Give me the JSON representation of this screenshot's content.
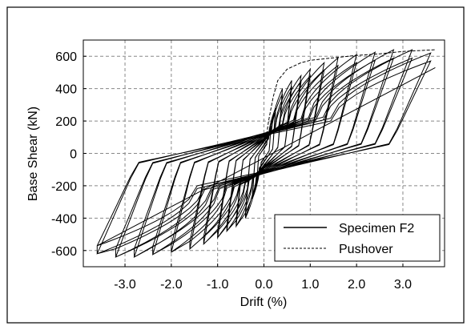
{
  "chart_data": {
    "type": "line",
    "title": "",
    "xlabel": "Drift (%)",
    "ylabel": "Base Shear (kN)",
    "xlim": [
      -3.9,
      3.9
    ],
    "ylim": [
      -700,
      700
    ],
    "grid": true,
    "legend_position": "bottom-right",
    "x_ticks": [
      -3,
      -2,
      -1,
      0,
      1,
      2,
      3
    ],
    "x_tick_labels": [
      "-3.0",
      "-2.0",
      "-1.0",
      "0.0",
      "1.0",
      "2.0",
      "3.0"
    ],
    "y_ticks": [
      600,
      400,
      200,
      0,
      -200,
      -400,
      -600
    ],
    "y_tick_labels": [
      "600",
      "400",
      "200",
      "0",
      "-200",
      "-400",
      "-600"
    ],
    "series": [
      {
        "name": "Specimen F2",
        "style": "solid",
        "cycles": [
          {
            "amp": 0.15,
            "peak": 170
          },
          {
            "amp": 0.25,
            "peak": 280
          },
          {
            "amp": 0.4,
            "peak": 400
          },
          {
            "amp": 0.6,
            "peak": 450
          },
          {
            "amp": 0.8,
            "peak": 480
          },
          {
            "amp": 1.0,
            "peak": 520
          },
          {
            "amp": 1.3,
            "peak": 560
          },
          {
            "amp": 1.6,
            "peak": 590
          },
          {
            "amp": 2.0,
            "peak": 610
          },
          {
            "amp": 2.4,
            "peak": 625
          },
          {
            "amp": 2.8,
            "peak": 640
          },
          {
            "amp": 3.2,
            "peak": 640
          },
          {
            "amp": 3.6,
            "peak": 620
          }
        ],
        "final_peak": {
          "drift": 3.7,
          "shear": 530
        }
      },
      {
        "name": "Pushover",
        "style": "dashed",
        "x": [
          0,
          0.1,
          0.2,
          0.3,
          0.5,
          0.8,
          1.0,
          1.5,
          2.0,
          2.5,
          3.0,
          3.7
        ],
        "y": [
          0,
          200,
          350,
          450,
          520,
          560,
          575,
          590,
          605,
          615,
          630,
          640
        ]
      }
    ]
  }
}
